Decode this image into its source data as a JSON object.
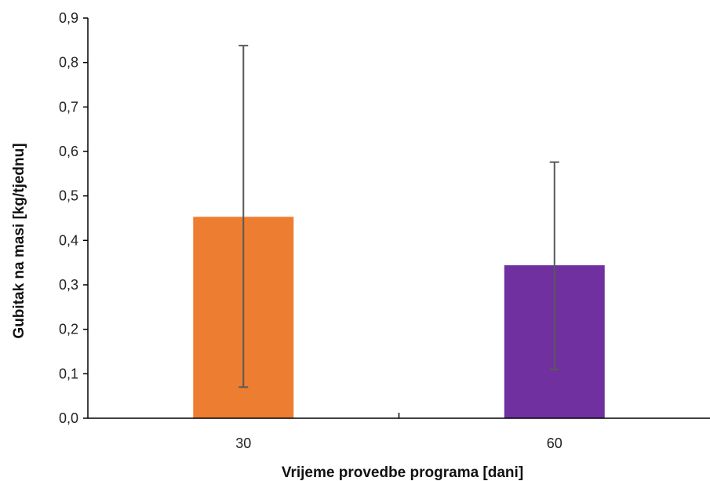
{
  "chart_data": {
    "type": "bar",
    "categories": [
      "30",
      "60"
    ],
    "series": [
      {
        "values": [
          0.453,
          0.344
        ],
        "error_low": [
          0.07,
          0.11
        ],
        "error_high": [
          0.838,
          0.576
        ],
        "colors": [
          "#ED7D31",
          "#7030A0"
        ]
      }
    ],
    "xlabel": "Vrijeme provedbe programa  [dani]",
    "ylabel": "Gubitak na masi [kg/tjednu]",
    "ylim": [
      0,
      0.9
    ],
    "yticks": [
      "0,0",
      "0,1",
      "0,2",
      "0,3",
      "0,4",
      "0,5",
      "0,6",
      "0,7",
      "0,8",
      "0,9"
    ],
    "grid": false,
    "legend": "none"
  }
}
